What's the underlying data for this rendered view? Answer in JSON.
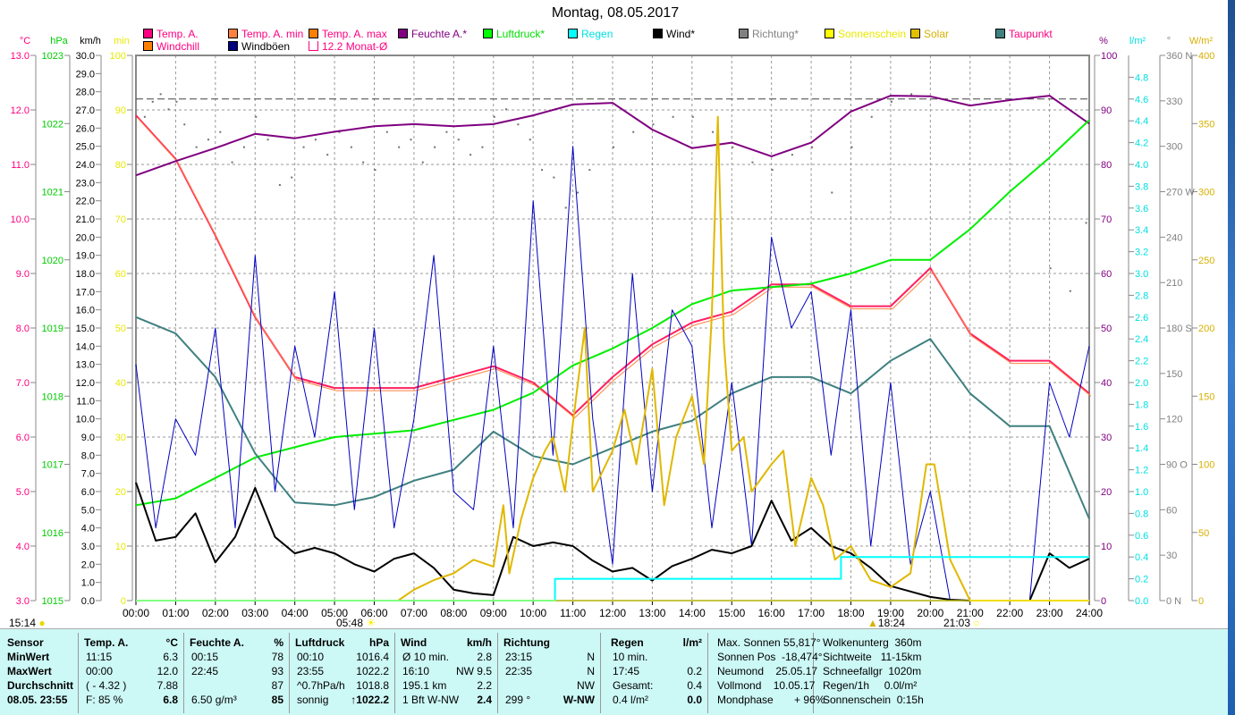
{
  "title": "Montag, 08.05.2017",
  "legend": [
    {
      "label": "Temp. A.",
      "color": "#ff0080",
      "text": "#ff0080"
    },
    {
      "label": "Temp. A. min",
      "color": "#ff8040",
      "text": "#ff0080"
    },
    {
      "label": "Temp. A. max",
      "color": "#ff8000",
      "text": "#ff0080"
    },
    {
      "label": "Feuchte A.*",
      "color": "#800080",
      "text": "#800080"
    },
    {
      "label": "Luftdruck*",
      "color": "#00ff00",
      "text": "#00dd00"
    },
    {
      "label": "Regen",
      "color": "#00ffff",
      "text": "#00e0e0"
    },
    {
      "label": "Wind*",
      "color": "#000000",
      "text": "#000"
    },
    {
      "label": "Richtung*",
      "color": "#808080",
      "text": "#808080"
    },
    {
      "label": "Sonnenschein",
      "color": "#ffff00",
      "text": "#e8e800"
    },
    {
      "label": "Solar",
      "color": "#e0c000",
      "text": "#d8b000"
    },
    {
      "label": "Taupunkt",
      "color": "#408080",
      "text": "#ff0080"
    },
    {
      "label": "Windchill",
      "color": "#ff8000",
      "text": "#ff0080"
    },
    {
      "label": "Windböen",
      "color": "#000080",
      "text": "#000"
    },
    {
      "label": "12.2 Monat-Ø",
      "color": "#ff0080",
      "text": "#ff0080"
    }
  ],
  "markers": {
    "left_time": "15:14",
    "sunrise": "05:48",
    "sunset": "18:24",
    "moon": "21:03"
  },
  "chart_data": {
    "type": "line",
    "title": "Montag, 08.05.2017",
    "x_labels": [
      "00:00",
      "01:00",
      "02:00",
      "03:00",
      "04:00",
      "05:00",
      "06:00",
      "07:00",
      "08:00",
      "09:00",
      "10:00",
      "11:00",
      "12:00",
      "13:00",
      "14:00",
      "15:00",
      "16:00",
      "17:00",
      "18:00",
      "19:00",
      "20:00",
      "21:00",
      "22:00",
      "23:00",
      "24:00"
    ],
    "xlim": [
      0,
      24
    ],
    "axes": [
      {
        "id": "temp",
        "unit": "°C",
        "min": 3,
        "max": 13,
        "step": 1,
        "dec": 1,
        "color": "#ff0080",
        "suffix": ""
      },
      {
        "id": "press",
        "unit": "hPa",
        "min": 1015,
        "max": 1023,
        "step": 1,
        "dec": 0,
        "color": "#00cc00",
        "suffix": ""
      },
      {
        "id": "wind",
        "unit": "km/h",
        "min": 0,
        "max": 30,
        "step": 1,
        "dec": 1,
        "color": "#000",
        "suffix": ""
      },
      {
        "id": "min",
        "unit": "min",
        "min": 0,
        "max": 100,
        "step": 10,
        "dec": 0,
        "color": "#e8e800",
        "suffix": ""
      },
      {
        "id": "hum",
        "unit": "%",
        "min": 0,
        "max": 100,
        "step": 10,
        "dec": 0,
        "color": "#800080",
        "suffix": ""
      },
      {
        "id": "rain",
        "unit": "l/m²",
        "min": 0,
        "max": 5,
        "step": 0.2,
        "dec": 1,
        "color": "#00e0e0",
        "suffix": "",
        "maxlabel": 4.8
      },
      {
        "id": "dir",
        "unit": "°",
        "min": 0,
        "max": 360,
        "step": 30,
        "dec": 0,
        "color": "#808080",
        "suffix": "",
        "named": {
          "0": " N",
          "90": " O",
          "180": " S",
          "270": " W",
          "360": " N"
        }
      },
      {
        "id": "solar",
        "unit": "W/m²",
        "min": 0,
        "max": 400,
        "step": 50,
        "dec": 0,
        "color": "#d8b000",
        "suffix": ""
      }
    ],
    "month_avg": {
      "axis": "temp",
      "value": 12.2
    },
    "series": [
      {
        "name": "Temp. A.",
        "axis": "temp",
        "color": "#ff2060",
        "x": [
          0,
          1,
          2,
          3,
          4,
          5,
          6,
          7,
          8,
          9,
          10,
          11,
          12,
          13,
          14,
          15,
          16,
          17,
          18,
          19,
          20,
          21,
          22,
          23,
          24
        ],
        "y": [
          11.9,
          11.1,
          9.7,
          8.2,
          7.1,
          6.9,
          6.9,
          6.9,
          7.1,
          7.3,
          7.0,
          6.4,
          7.1,
          7.7,
          8.1,
          8.3,
          8.8,
          8.8,
          8.4,
          8.4,
          9.1,
          7.9,
          7.4,
          7.4,
          6.8
        ]
      },
      {
        "name": "Feuchte A.*",
        "axis": "hum",
        "color": "#800080",
        "x": [
          0,
          1,
          2,
          3,
          4,
          5,
          6,
          7,
          8,
          9,
          10,
          11,
          12,
          13,
          14,
          15,
          16,
          17,
          18,
          19,
          20,
          21,
          22,
          23,
          24
        ],
        "y": [
          78,
          80.6,
          83,
          85.6,
          84.8,
          86,
          87,
          87.4,
          87,
          87.4,
          89,
          91,
          91.3,
          86.4,
          83,
          84,
          81.5,
          84,
          89.7,
          92.6,
          92.5,
          90.8,
          91.8,
          92.6,
          87.5
        ]
      },
      {
        "name": "Luftdruck*",
        "axis": "press",
        "color": "#00ee00",
        "x": [
          0,
          1,
          2,
          3,
          4,
          5,
          6,
          7,
          8,
          9,
          10,
          11,
          12,
          13,
          14,
          15,
          16,
          17,
          18,
          19,
          20,
          21,
          22,
          23,
          24
        ],
        "y": [
          1016.4,
          1016.5,
          1016.8,
          1017.1,
          1017.25,
          1017.4,
          1017.45,
          1017.5,
          1017.65,
          1017.8,
          1018.05,
          1018.45,
          1018.7,
          1019.0,
          1019.35,
          1019.55,
          1019.6,
          1019.65,
          1019.8,
          1020.0,
          1020.0,
          1020.45,
          1021.0,
          1021.5,
          1022.05
        ]
      },
      {
        "name": "Taupunkt",
        "axis": "temp",
        "color": "#408080",
        "x": [
          0,
          1,
          2,
          3,
          4,
          5,
          6,
          7,
          8,
          9,
          10,
          11,
          12,
          13,
          14,
          15,
          16,
          17,
          18,
          19,
          20,
          21,
          22,
          23,
          24
        ],
        "y": [
          8.2,
          7.9,
          7.1,
          5.7,
          4.8,
          4.75,
          4.9,
          5.2,
          5.4,
          6.1,
          5.65,
          5.5,
          5.8,
          6.1,
          6.3,
          6.8,
          7.1,
          7.1,
          6.8,
          7.4,
          7.8,
          6.8,
          6.2,
          6.2,
          4.5
        ]
      },
      {
        "name": "Windböen",
        "axis": "wind",
        "color": "#0000c0",
        "x": [
          0,
          0.5,
          1,
          1.5,
          2,
          2.5,
          3,
          3.5,
          4,
          4.5,
          5,
          5.5,
          6,
          6.5,
          7,
          7.5,
          8,
          8.5,
          9,
          9.5,
          10,
          10.5,
          11,
          11.5,
          12,
          12.5,
          13,
          13.5,
          14,
          14.5,
          15,
          15.5,
          16,
          16.5,
          17,
          17.5,
          18,
          18.5,
          19,
          19.5,
          20,
          20.5,
          21,
          21.5,
          22,
          22.5,
          23,
          23.5,
          24
        ],
        "y": [
          13,
          4,
          10,
          8,
          15,
          4,
          19,
          6,
          14,
          9,
          17,
          5,
          15,
          4,
          10,
          19,
          6,
          5,
          14,
          4,
          22,
          8,
          25,
          10,
          2,
          18,
          6,
          16,
          14,
          4,
          12,
          3,
          20,
          15,
          17,
          8,
          16,
          3,
          12,
          2,
          6,
          0,
          0,
          0,
          0,
          0,
          12,
          9,
          14
        ]
      },
      {
        "name": "Wind*",
        "axis": "wind",
        "color": "#000",
        "x": [
          0,
          0.5,
          1,
          1.5,
          2,
          2.5,
          3,
          3.5,
          4,
          4.5,
          5,
          5.5,
          6,
          6.5,
          7,
          7.5,
          8,
          8.5,
          9,
          9.5,
          10,
          10.5,
          11,
          11.5,
          12,
          12.5,
          13,
          13.5,
          14,
          14.5,
          15,
          15.5,
          16,
          16.5,
          17,
          17.5,
          18,
          18.5,
          19,
          19.5,
          20,
          20.5,
          21,
          21.5,
          22,
          22.5,
          23,
          23.5,
          24
        ],
        "y": [
          6.5,
          3.3,
          3.5,
          4.8,
          2.1,
          3.5,
          6.2,
          3.5,
          2.6,
          2.9,
          2.6,
          2.0,
          1.6,
          2.3,
          2.6,
          1.8,
          0.6,
          0.4,
          0.3,
          3.5,
          3.0,
          3.2,
          3.0,
          2.2,
          1.6,
          1.8,
          1.1,
          1.9,
          2.3,
          2.8,
          2.6,
          3.0,
          5.5,
          3.3,
          4.0,
          3.0,
          2.6,
          1.8,
          0.8,
          0.5,
          0.2,
          0.05,
          0,
          0,
          0,
          0,
          2.6,
          1.8,
          2.3
        ]
      },
      {
        "name": "Solar",
        "axis": "solar",
        "color": "#e0b800",
        "x": [
          0,
          6.6,
          7,
          7.5,
          8,
          8.5,
          9,
          9.25,
          9.4,
          9.7,
          10,
          10.3,
          10.5,
          10.8,
          11,
          11.3,
          11.5,
          12,
          12.3,
          12.6,
          13,
          13.3,
          13.6,
          14,
          14.3,
          14.5,
          14.65,
          14.8,
          15,
          15.3,
          15.5,
          16,
          16.3,
          16.6,
          17,
          17.3,
          17.6,
          18,
          18.5,
          19,
          19.5,
          19.9,
          20.1,
          20.5,
          21,
          24
        ],
        "y": [
          0,
          0,
          8,
          15,
          20,
          30,
          25,
          70,
          20,
          60,
          90,
          110,
          120,
          80,
          130,
          200,
          80,
          110,
          140,
          100,
          170,
          70,
          120,
          150,
          100,
          210,
          355,
          190,
          110,
          120,
          80,
          100,
          110,
          40,
          90,
          70,
          30,
          40,
          15,
          10,
          20,
          100,
          100,
          30,
          0,
          0
        ]
      },
      {
        "name": "Regen",
        "axis": "rain",
        "color": "#00ffff",
        "step": true,
        "x": [
          0,
          10.55,
          10.55,
          17.75,
          17.75,
          24
        ],
        "y": [
          0,
          0,
          0.2,
          0.2,
          0.4,
          0.4
        ]
      }
    ],
    "direction_points": {
      "axis": "dir",
      "color": "#707070",
      "x": [
        0.2,
        0.4,
        0.6,
        0.8,
        1.0,
        1.2,
        1.5,
        1.8,
        2.1,
        2.4,
        2.7,
        3.0,
        3.3,
        3.6,
        3.9,
        4.2,
        4.5,
        4.8,
        5.1,
        5.4,
        5.7,
        6.0,
        6.3,
        6.6,
        6.9,
        7.2,
        7.5,
        7.8,
        8.1,
        8.4,
        8.7,
        9.0,
        9.3,
        9.6,
        9.9,
        10.2,
        10.5,
        10.8,
        11.1,
        11.4,
        12.0,
        12.5,
        13.0,
        13.5,
        14.0,
        14.5,
        15.0,
        15.5,
        16.0,
        16.5,
        17.0,
        17.5,
        18.0,
        18.5,
        19.0,
        19.5,
        23.0,
        23.5,
        23.9
      ],
      "y": [
        320,
        330,
        335,
        325,
        330,
        315,
        300,
        305,
        310,
        290,
        300,
        320,
        305,
        275,
        280,
        300,
        305,
        295,
        310,
        300,
        290,
        285,
        310,
        300,
        305,
        290,
        300,
        310,
        305,
        295,
        300,
        320,
        325,
        315,
        305,
        285,
        280,
        260,
        270,
        285,
        300,
        310,
        315,
        320,
        320,
        310,
        300,
        290,
        285,
        295,
        300,
        270,
        300,
        320,
        330,
        335,
        220,
        205,
        250
      ]
    },
    "sunshine": {
      "axis": "min",
      "color": "#ffff00",
      "x": [
        0,
        24
      ],
      "y": [
        0,
        0
      ]
    }
  },
  "table": {
    "sensor": {
      "h": "Sensor",
      "r": [
        "MinWert",
        "MaxWert",
        "Durchschnitt",
        "08.05. 23:55"
      ]
    },
    "temp": {
      "h": "Temp. A.",
      "u": "°C",
      "a": [
        "11:15",
        "00:00",
        "( - 4.32 )",
        "F: 85 %"
      ],
      "b": [
        "6.3",
        "12.0",
        "7.88",
        "6.8"
      ]
    },
    "hum": {
      "h": "Feuchte A.",
      "u": "%",
      "a": [
        "00:15",
        "22:45",
        "",
        "6.50 g/m³"
      ],
      "b": [
        "78",
        "93",
        "87",
        "85"
      ]
    },
    "press": {
      "h": "Luftdruck",
      "u": "hPa",
      "a": [
        "00:10",
        "23:55",
        "^0.7hPa/h",
        "sonnig"
      ],
      "b": [
        "1016.4",
        "1022.2",
        "1018.8",
        "↑1022.2"
      ]
    },
    "wind": {
      "h": "Wind",
      "u": "km/h",
      "a": [
        "Ø 10 min.",
        "16:10",
        "195.1 km",
        "1 Bft W-NW"
      ],
      "b": [
        "2.8",
        "NW 9.5",
        "2.2",
        "2.4"
      ]
    },
    "dir": {
      "h": "Richtung",
      "u": "",
      "a": [
        "23:15",
        "22:35",
        "",
        "299 °"
      ],
      "b": [
        "N",
        "N",
        "NW",
        "W-NW"
      ]
    },
    "rain": {
      "h": "Regen",
      "u": "l/m²",
      "a": [
        "10 min.",
        "17:45",
        "Gesamt:",
        "0.4 l/m²"
      ],
      "b": [
        "",
        "0.2",
        "0.4",
        "0.0"
      ]
    },
    "sun": [
      "Max. Sonnen 55,817°",
      "Sonnen Pos  -18,474°",
      "Neumond    25.05.17",
      "Vollmond    10.05.17",
      "Mondphase       + 96%"
    ],
    "misc": [
      "Wolkenunterg  360m",
      "Sichtweite   11-15km",
      "Schneefallgr  1020m",
      "Regen/1h     0.0l/m²",
      "Sonnenschein  0:15h"
    ]
  }
}
